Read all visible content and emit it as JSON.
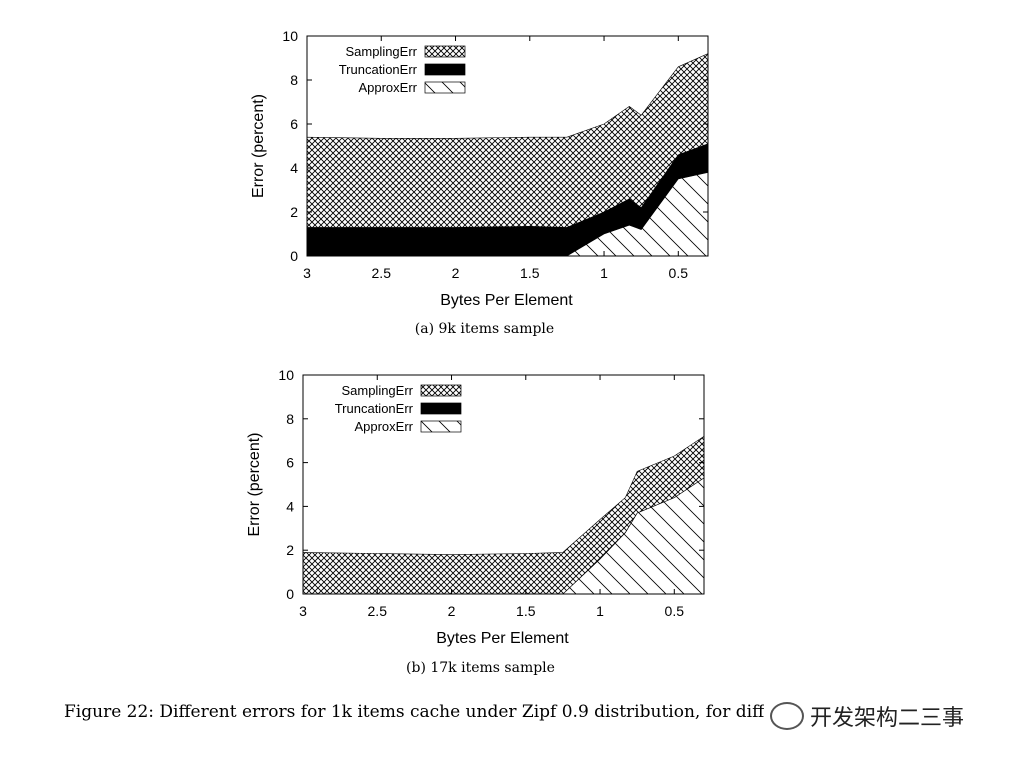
{
  "figure_caption": "Figure 22: Different errors for 1k items cache under Zipf 0.9 distribution, for differe",
  "watermark_text": "开发架构二三事",
  "colors": {
    "background": "#ffffff",
    "ink": "#000000"
  },
  "chart_data": [
    {
      "type": "area",
      "stacked": true,
      "caption": "(a) 9k items sample",
      "xlabel": "Bytes Per Element",
      "ylabel": "Error (percent)",
      "xlim": [
        3,
        0.3
      ],
      "ylim": [
        0,
        10
      ],
      "x_reversed": true,
      "x_ticks": [
        3,
        2.5,
        2,
        1.5,
        1,
        0.5
      ],
      "x_tick_labels": [
        "3",
        "2.5",
        "2",
        "1.5",
        "1",
        "0.5"
      ],
      "y_ticks": [
        0,
        2,
        4,
        6,
        8,
        10
      ],
      "legend_position": "top-left",
      "x": [
        3,
        2.5,
        2,
        1.5,
        1.25,
        1.0,
        0.83,
        0.75,
        0.5,
        0.3
      ],
      "series": [
        {
          "name": "ApproxErr",
          "pattern": "hatch",
          "values": [
            0,
            0,
            0,
            0,
            0,
            1.0,
            1.4,
            1.2,
            3.5,
            3.8
          ]
        },
        {
          "name": "TruncationErr",
          "pattern": "solid",
          "values": [
            1.3,
            1.3,
            1.3,
            1.35,
            1.3,
            1.0,
            1.2,
            1.0,
            1.1,
            1.3
          ]
        },
        {
          "name": "SamplingErr",
          "pattern": "crosshatch",
          "values": [
            4.1,
            4.05,
            4.05,
            4.05,
            4.1,
            4.0,
            4.2,
            4.2,
            4.0,
            4.1
          ]
        }
      ]
    },
    {
      "type": "area",
      "stacked": true,
      "caption": "(b) 17k items sample",
      "xlabel": "Bytes Per Element",
      "ylabel": "Error (percent)",
      "xlim": [
        3,
        0.3
      ],
      "ylim": [
        0,
        10
      ],
      "x_reversed": true,
      "x_ticks": [
        3,
        2.5,
        2,
        1.5,
        1,
        0.5
      ],
      "x_tick_labels": [
        "3",
        "2.5",
        "2",
        "1.5",
        "1",
        "0.5"
      ],
      "y_ticks": [
        0,
        2,
        4,
        6,
        8,
        10
      ],
      "legend_position": "top-left",
      "x": [
        3,
        2.5,
        2,
        1.5,
        1.25,
        1.0,
        0.83,
        0.75,
        0.5,
        0.3
      ],
      "series": [
        {
          "name": "ApproxErr",
          "pattern": "hatch",
          "values": [
            0,
            0,
            0,
            0,
            0,
            1.6,
            2.8,
            3.7,
            4.4,
            5.3
          ]
        },
        {
          "name": "TruncationErr",
          "pattern": "solid",
          "values": [
            0,
            0,
            0,
            0,
            0,
            0,
            0,
            0,
            0,
            0
          ]
        },
        {
          "name": "SamplingErr",
          "pattern": "crosshatch",
          "values": [
            1.9,
            1.85,
            1.8,
            1.85,
            1.9,
            1.8,
            1.6,
            1.9,
            1.9,
            1.9
          ]
        }
      ]
    }
  ]
}
